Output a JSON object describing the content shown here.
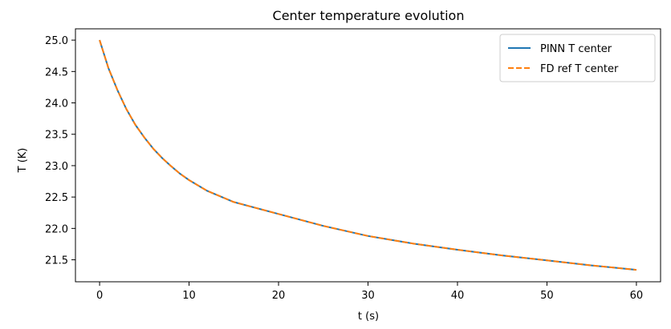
{
  "chart_data": {
    "type": "line",
    "title": "Center temperature evolution",
    "xlabel": "t (s)",
    "ylabel": "T (K)",
    "xlim": [
      -2.7,
      62.7
    ],
    "ylim": [
      21.15,
      25.18
    ],
    "xticks": [
      0,
      10,
      20,
      30,
      40,
      50,
      60
    ],
    "yticks": [
      21.5,
      22.0,
      22.5,
      23.0,
      23.5,
      24.0,
      24.5,
      25.0
    ],
    "xtick_labels": [
      "0",
      "10",
      "20",
      "30",
      "40",
      "50",
      "60"
    ],
    "ytick_labels": [
      "21.5",
      "22.0",
      "22.5",
      "23.0",
      "23.5",
      "24.0",
      "24.5",
      "25.0"
    ],
    "grid": false,
    "legend_position": "top-right",
    "series": [
      {
        "name": "PINN T center",
        "color": "#1f77b4",
        "style": "solid",
        "x": [
          0,
          1,
          2,
          3,
          4,
          5,
          6,
          7,
          8,
          9,
          10,
          12,
          15,
          20,
          25,
          30,
          35,
          40,
          45,
          50,
          55,
          60
        ],
        "y": [
          25.0,
          24.55,
          24.2,
          23.9,
          23.65,
          23.45,
          23.27,
          23.12,
          22.99,
          22.87,
          22.77,
          22.6,
          22.42,
          22.23,
          22.04,
          21.88,
          21.76,
          21.66,
          21.57,
          21.49,
          21.41,
          21.34
        ]
      },
      {
        "name": "FD ref T center",
        "color": "#ff7f0e",
        "style": "dashed",
        "x": [
          0,
          1,
          2,
          3,
          4,
          5,
          6,
          7,
          8,
          9,
          10,
          12,
          15,
          20,
          25,
          30,
          35,
          40,
          45,
          50,
          55,
          60
        ],
        "y": [
          25.0,
          24.55,
          24.2,
          23.9,
          23.65,
          23.45,
          23.27,
          23.12,
          22.99,
          22.87,
          22.77,
          22.6,
          22.42,
          22.23,
          22.04,
          21.88,
          21.76,
          21.66,
          21.57,
          21.49,
          21.41,
          21.34
        ]
      }
    ]
  }
}
